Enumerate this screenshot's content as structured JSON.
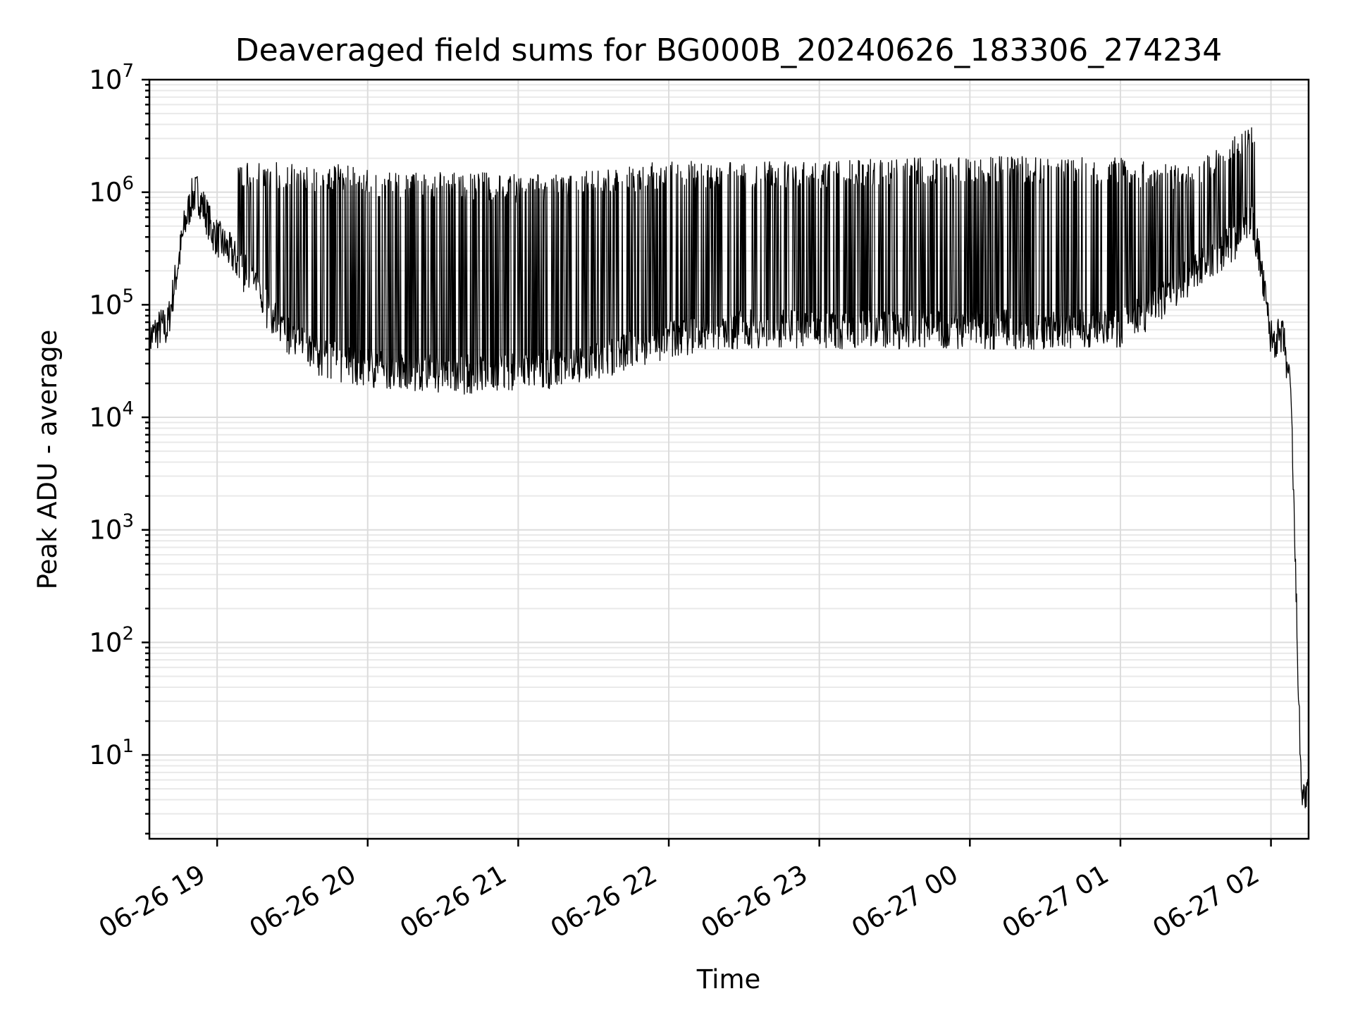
{
  "chart_data": {
    "type": "line",
    "title": "Deaveraged field sums for BG000B_20240626_183306_274234",
    "xlabel": "Time",
    "ylabel": "Peak ADU - average",
    "yscale": "log",
    "ylim": [
      1.8,
      10000000
    ],
    "xlim": [
      "2024-06-26 18:33",
      "2024-06-27 02:15"
    ],
    "grid": true,
    "line_color": "#000000",
    "x_ticks": [
      {
        "t": "2024-06-26 19:00",
        "label": "06-26 19"
      },
      {
        "t": "2024-06-26 20:00",
        "label": "06-26 20"
      },
      {
        "t": "2024-06-26 21:00",
        "label": "06-26 21"
      },
      {
        "t": "2024-06-26 22:00",
        "label": "06-26 22"
      },
      {
        "t": "2024-06-26 23:00",
        "label": "06-26 23"
      },
      {
        "t": "2024-06-27 00:00",
        "label": "06-27 00"
      },
      {
        "t": "2024-06-27 01:00",
        "label": "06-27 01"
      },
      {
        "t": "2024-06-27 02:00",
        "label": "06-27 02"
      }
    ],
    "y_ticks": [
      {
        "value": 10,
        "base": "10",
        "exp": "1"
      },
      {
        "value": 100,
        "base": "10",
        "exp": "2"
      },
      {
        "value": 1000,
        "base": "10",
        "exp": "3"
      },
      {
        "value": 10000,
        "base": "10",
        "exp": "4"
      },
      {
        "value": 100000,
        "base": "10",
        "exp": "5"
      },
      {
        "value": 1000000,
        "base": "10",
        "exp": "6"
      },
      {
        "value": 10000000,
        "base": "10",
        "exp": "7"
      }
    ],
    "series": [
      {
        "x": [
          "2024-06-26 18:33",
          "2024-06-26 18:38",
          "2024-06-26 18:40",
          "2024-06-26 18:43",
          "2024-06-26 18:47",
          "2024-06-26 18:50",
          "2024-06-26 18:52",
          "2024-06-26 18:55",
          "2024-06-26 18:58",
          "2024-06-26 19:02",
          "2024-06-26 19:06",
          "2024-06-26 19:10",
          "2024-06-26 19:15",
          "2024-06-26 19:20",
          "2024-06-26 19:30",
          "2024-06-26 19:40",
          "2024-06-26 19:50",
          "2024-06-26 20:00",
          "2024-06-26 20:15",
          "2024-06-26 20:30",
          "2024-06-26 20:45",
          "2024-06-26 21:00",
          "2024-06-26 21:15",
          "2024-06-26 21:30",
          "2024-06-26 21:45",
          "2024-06-26 22:00",
          "2024-06-26 22:20",
          "2024-06-26 22:40",
          "2024-06-26 23:00",
          "2024-06-26 23:30",
          "2024-06-27 00:00",
          "2024-06-27 00:30",
          "2024-06-27 01:00",
          "2024-06-27 01:15",
          "2024-06-27 01:30",
          "2024-06-27 01:45",
          "2024-06-27 01:52",
          "2024-06-27 01:55",
          "2024-06-27 02:00",
          "2024-06-27 02:05",
          "2024-06-27 02:08",
          "2024-06-27 02:12",
          "2024-06-27 02:15"
        ],
        "base": [
          50000,
          65000,
          60000,
          150000,
          500000,
          900000,
          1000000,
          700000,
          450000,
          350000,
          280000,
          200000,
          150000,
          90000,
          50000,
          35000,
          30000,
          28000,
          25000,
          24000,
          24000,
          25000,
          27000,
          30000,
          40000,
          50000,
          60000,
          62000,
          60000,
          60000,
          60000,
          60000,
          62000,
          100000,
          200000,
          350000,
          600000,
          300000,
          50000,
          50000,
          15000,
          5,
          4
        ],
        "peaks": [
          0,
          0,
          0,
          0,
          0,
          0,
          0,
          0,
          0,
          0,
          0,
          1500000,
          1500000,
          1500000,
          1500000,
          1400000,
          1400000,
          1300000,
          1200000,
          1200000,
          1200000,
          1150000,
          1150000,
          1300000,
          1400000,
          1500000,
          1500000,
          1500000,
          1500000,
          1600000,
          1650000,
          1650000,
          1600000,
          1500000,
          1500000,
          2500000,
          3000000,
          0,
          0,
          0,
          0,
          0,
          0
        ]
      }
    ]
  }
}
